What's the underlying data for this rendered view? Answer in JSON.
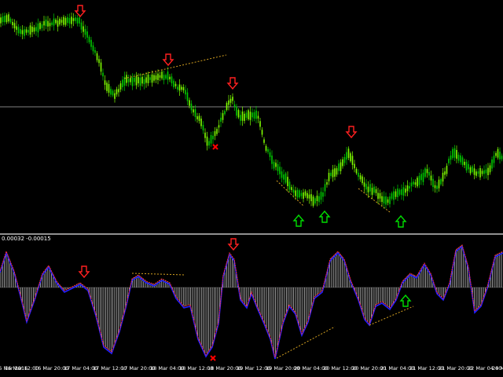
{
  "oscillator": {
    "scale_label": "0.00032 -0.00015"
  },
  "time_axis": {
    "labels": [
      "16 Mar 2016",
      "16 Mar 12:00",
      "16 Mar 20:00",
      "17 Mar 04:00",
      "17 Mar 12:00",
      "17 Mar 20:00",
      "18 Mar 04:00",
      "18 Mar 12:00",
      "18 Mar 20:00",
      "19 Mar 12:00",
      "19 Mar 20:00",
      "20 Mar 04:00",
      "20 Mar 12:00",
      "20 Mar 20:00",
      "21 Mar 04:00",
      "21 Mar 12:00",
      "21 Mar 20:00",
      "22 Mar 04:00",
      "22 Mar 12:00",
      "22 Mar 20:00",
      "23 Mar 04:00",
      "23 Mar 12:00",
      "23 Mar 20:00",
      "24 M"
    ]
  },
  "colors": {
    "background": "#000000",
    "bull_candle": "#00cc00",
    "bear_candle": "#7fff00",
    "signal_down": "#ff2020",
    "signal_up": "#00dd00",
    "cross": "#ff0000",
    "trendline": "#d4a020",
    "osc_bars": "#c0c0c0",
    "osc_line_red": "#ff3030",
    "osc_line_blue": "#2020ff",
    "hline": "#808080"
  },
  "markers": {
    "down_arrows": 6,
    "up_arrows": 5,
    "cross_marks": 2
  }
}
